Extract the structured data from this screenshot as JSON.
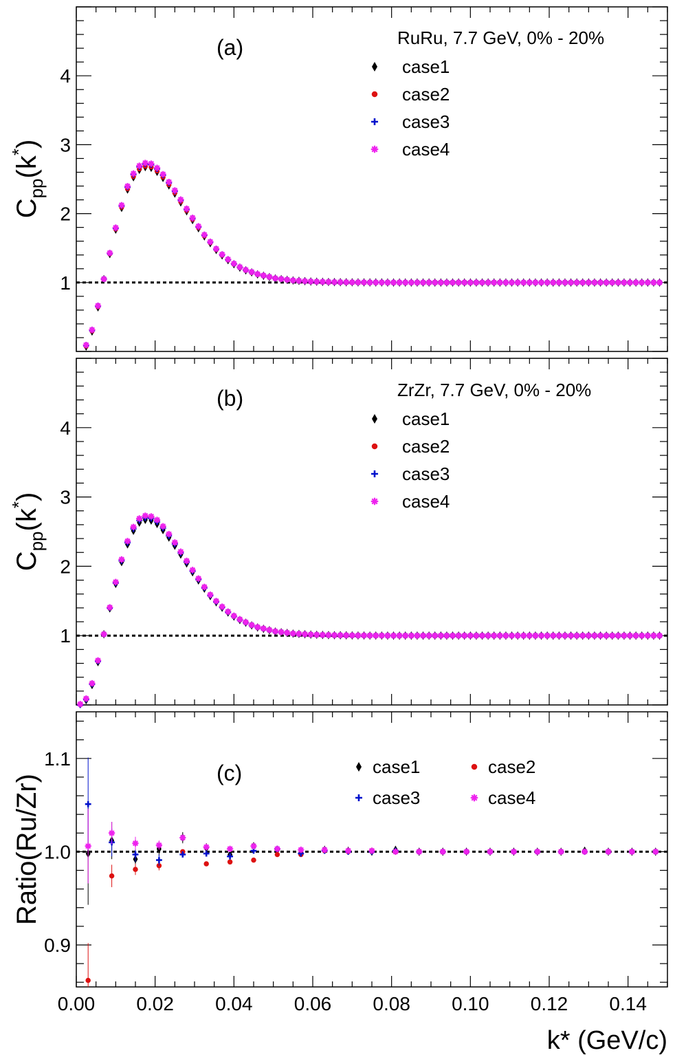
{
  "chart_data": [
    {
      "type": "scatter",
      "panel_label": "(a)",
      "legend_title": "RuRu, 7.7 GeV, 0% - 20%",
      "xlabel": "",
      "ylabel": "C_pp(k*)",
      "xlim": [
        0,
        0.15
      ],
      "ylim": [
        0,
        5
      ],
      "reference_line": 1,
      "y_ticks": [
        "1",
        "2",
        "3",
        "4"
      ],
      "x": [
        0.0025,
        0.004,
        0.0055,
        0.007,
        0.0085,
        0.01,
        0.0115,
        0.013,
        0.0145,
        0.016,
        0.0175,
        0.019,
        0.0205,
        0.022,
        0.0235,
        0.025,
        0.0265,
        0.028,
        0.0295,
        0.031,
        0.0325,
        0.034,
        0.0355,
        0.037,
        0.0385,
        0.04,
        0.0415,
        0.043,
        0.0445,
        0.046,
        0.0475,
        0.049,
        0.0505,
        0.052,
        0.0535,
        0.055,
        0.0565,
        0.058,
        0.0595,
        0.061,
        0.0625,
        0.064,
        0.0655,
        0.067,
        0.0685,
        0.07,
        0.0715,
        0.073,
        0.0745,
        0.076,
        0.0775,
        0.079,
        0.0805,
        0.082,
        0.0835,
        0.085,
        0.0865,
        0.088,
        0.0895,
        0.091,
        0.0925,
        0.094,
        0.0955,
        0.097,
        0.0985,
        0.1,
        0.1015,
        0.103,
        0.1045,
        0.106,
        0.1075,
        0.109,
        0.1105,
        0.112,
        0.1135,
        0.115,
        0.1165,
        0.118,
        0.1195,
        0.121,
        0.1225,
        0.124,
        0.1255,
        0.127,
        0.1285,
        0.13,
        0.1315,
        0.133,
        0.1345,
        0.136,
        0.1375,
        0.139,
        0.1405,
        0.142,
        0.1435,
        0.145,
        0.1465,
        0.148
      ],
      "curve": [
        0.08,
        0.3,
        0.65,
        1.05,
        1.42,
        1.78,
        2.1,
        2.37,
        2.55,
        2.66,
        2.7,
        2.69,
        2.63,
        2.54,
        2.43,
        2.31,
        2.18,
        2.05,
        1.92,
        1.8,
        1.68,
        1.58,
        1.48,
        1.4,
        1.33,
        1.27,
        1.22,
        1.18,
        1.15,
        1.12,
        1.1,
        1.08,
        1.06,
        1.05,
        1.04,
        1.03,
        1.025,
        1.02,
        1.015,
        1.012,
        1.01,
        1.008,
        1.006,
        1.005,
        1.004,
        1.003,
        1.002,
        1.002,
        1.001,
        1.001,
        1.001,
        1.0,
        1.0,
        1.0,
        1.0,
        1.0,
        1.0,
        1.0,
        1.0,
        1.0,
        1.0,
        1.0,
        1.0,
        1.0,
        1.0,
        1.0,
        1.0,
        1.0,
        1.0,
        1.0,
        1.0,
        1.0,
        1.0,
        1.0,
        1.0,
        1.0,
        1.0,
        1.0,
        1.0,
        1.0,
        1.0,
        1.0,
        1.0,
        1.0,
        1.0,
        1.0,
        1.0,
        1.0,
        1.0,
        1.0,
        1.0,
        1.0,
        1.0,
        1.0,
        1.0,
        1.0,
        1.0,
        1.0
      ],
      "series": [
        {
          "name": "case1",
          "color": "#000000",
          "marker": "diamond",
          "offset": -0.025
        },
        {
          "name": "case2",
          "color": "#dd1111",
          "marker": "circle",
          "offset": -0.01
        },
        {
          "name": "case3",
          "color": "#0011cc",
          "marker": "plus",
          "offset": 0.02
        },
        {
          "name": "case4",
          "color": "#ee22ee",
          "marker": "star",
          "offset": 0.035
        }
      ]
    },
    {
      "type": "scatter",
      "panel_label": "(b)",
      "legend_title": "ZrZr, 7.7 GeV, 0% - 20%",
      "xlabel": "",
      "ylabel": "C_pp(k*)",
      "xlim": [
        0,
        0.15
      ],
      "ylim": [
        0,
        5
      ],
      "reference_line": 1,
      "y_ticks": [
        "1",
        "2",
        "3",
        "4"
      ],
      "x": [
        0.001,
        0.0025,
        0.004,
        0.0055,
        0.007,
        0.0085,
        0.01,
        0.0115,
        0.013,
        0.0145,
        0.016,
        0.0175,
        0.019,
        0.0205,
        0.022,
        0.0235,
        0.025,
        0.0265,
        0.028,
        0.0295,
        0.031,
        0.0325,
        0.034,
        0.0355,
        0.037,
        0.0385,
        0.04,
        0.0415,
        0.043,
        0.0445,
        0.046,
        0.0475,
        0.049,
        0.0505,
        0.052,
        0.0535,
        0.055,
        0.0565,
        0.058,
        0.0595,
        0.061,
        0.0625,
        0.064,
        0.0655,
        0.067,
        0.0685,
        0.07,
        0.0715,
        0.073,
        0.0745,
        0.076,
        0.0775,
        0.079,
        0.0805,
        0.082,
        0.0835,
        0.085,
        0.0865,
        0.088,
        0.0895,
        0.091,
        0.0925,
        0.094,
        0.0955,
        0.097,
        0.0985,
        0.1,
        0.1015,
        0.103,
        0.1045,
        0.106,
        0.1075,
        0.109,
        0.1105,
        0.112,
        0.1135,
        0.115,
        0.1165,
        0.118,
        0.1195,
        0.121,
        0.1225,
        0.124,
        0.1255,
        0.127,
        0.1285,
        0.13,
        0.1315,
        0.133,
        0.1345,
        0.136,
        0.1375,
        0.139,
        0.1405,
        0.142,
        0.1435,
        0.145,
        0.1465,
        0.148
      ],
      "curve": [
        0.0,
        0.08,
        0.3,
        0.63,
        1.02,
        1.4,
        1.76,
        2.08,
        2.34,
        2.54,
        2.66,
        2.7,
        2.69,
        2.64,
        2.55,
        2.44,
        2.32,
        2.19,
        2.06,
        1.93,
        1.81,
        1.69,
        1.58,
        1.49,
        1.41,
        1.34,
        1.28,
        1.23,
        1.19,
        1.15,
        1.12,
        1.1,
        1.08,
        1.06,
        1.05,
        1.04,
        1.03,
        1.025,
        1.02,
        1.015,
        1.012,
        1.01,
        1.008,
        1.006,
        1.005,
        1.004,
        1.003,
        1.002,
        1.002,
        1.001,
        1.001,
        1.001,
        1.0,
        1.0,
        1.0,
        1.0,
        1.0,
        1.0,
        1.0,
        1.0,
        1.0,
        1.0,
        1.0,
        1.0,
        1.0,
        1.0,
        1.0,
        1.0,
        1.0,
        1.0,
        1.0,
        1.0,
        1.0,
        1.0,
        1.0,
        1.0,
        1.0,
        1.0,
        1.0,
        1.0,
        1.0,
        1.0,
        1.0,
        1.0,
        1.0,
        1.0,
        1.0,
        1.0,
        1.0,
        1.0,
        1.0,
        1.0,
        1.0,
        1.0,
        1.0,
        1.0,
        1.0,
        1.0,
        1.0
      ],
      "series": [
        {
          "name": "case1",
          "color": "#000000",
          "marker": "diamond",
          "offset": -0.03
        },
        {
          "name": "case2",
          "color": "#dd1111",
          "marker": "circle",
          "offset": 0.02
        },
        {
          "name": "case3",
          "color": "#0011cc",
          "marker": "plus",
          "offset": 0.0
        },
        {
          "name": "case4",
          "color": "#ee22ee",
          "marker": "star",
          "offset": 0.03
        }
      ]
    },
    {
      "type": "scatter",
      "panel_label": "(c)",
      "xlabel": "k* (GeV/c)",
      "ylabel": "Ratio(Ru/Zr)",
      "xlim": [
        0,
        0.15
      ],
      "ylim": [
        0.855,
        1.15
      ],
      "reference_line": 1.0,
      "y_ticks": [
        "0.9",
        "1.0",
        "1.1"
      ],
      "x_ticks": [
        "0.00",
        "0.02",
        "0.04",
        "0.06",
        "0.08",
        "0.10",
        "0.12",
        "0.14"
      ],
      "x": [
        0.003,
        0.009,
        0.015,
        0.021,
        0.027,
        0.033,
        0.039,
        0.045,
        0.051,
        0.057,
        0.063,
        0.069,
        0.075,
        0.081,
        0.087,
        0.093,
        0.099,
        0.105,
        0.111,
        0.117,
        0.123,
        0.129,
        0.135,
        0.141,
        0.147
      ],
      "series": [
        {
          "name": "case1",
          "color": "#000000",
          "marker": "diamond",
          "values": [
            0.998,
            1.012,
            0.992,
            1.003,
            1.015,
            1.004,
            0.997,
            1.006,
            1.002,
            0.999,
            1.002,
            1.001,
            1.0,
            1.002,
            1.0,
            1.0,
            1.0,
            1.0,
            1.0,
            1.0,
            1.0,
            1.001,
            1.0,
            1.0,
            1.0
          ],
          "errors": [
            0.055,
            0.02,
            0.012,
            0.008,
            0.006,
            0.005,
            0.004,
            0.003,
            0.003,
            0.003,
            0.002,
            0.002,
            0.002,
            0.002,
            0.002,
            0.002,
            0.002,
            0.002,
            0.002,
            0.002,
            0.002,
            0.002,
            0.002,
            0.002,
            0.002
          ]
        },
        {
          "name": "case2",
          "color": "#dd1111",
          "marker": "circle",
          "values": [
            0.862,
            0.974,
            0.981,
            0.985,
            1.0,
            0.987,
            0.989,
            0.991,
            0.997,
            0.997,
            1.001,
            1.0,
            1.001,
            1.0,
            1.0,
            1.0,
            1.0,
            1.0,
            1.0,
            1.0,
            1.0,
            1.0,
            1.0,
            1.0,
            1.0
          ],
          "errors": [
            0.04,
            0.012,
            0.006,
            0.005,
            0.004,
            0.003,
            0.003,
            0.003,
            0.002,
            0.002,
            0.002,
            0.002,
            0.002,
            0.002,
            0.002,
            0.002,
            0.002,
            0.002,
            0.002,
            0.002,
            0.002,
            0.002,
            0.002,
            0.002,
            0.002
          ]
        },
        {
          "name": "case3",
          "color": "#0011cc",
          "marker": "plus",
          "values": [
            1.051,
            1.01,
            0.997,
            0.991,
            0.997,
            0.998,
            0.995,
            1.001,
            1.003,
            0.998,
            1.001,
            1.0,
            1.0,
            1.001,
            1.0,
            1.0,
            1.0,
            1.0,
            1.0,
            1.0,
            1.0,
            1.0,
            1.0,
            1.0,
            1.0
          ],
          "errors": [
            0.05,
            0.015,
            0.008,
            0.006,
            0.004,
            0.004,
            0.003,
            0.003,
            0.003,
            0.002,
            0.002,
            0.002,
            0.002,
            0.002,
            0.002,
            0.002,
            0.002,
            0.002,
            0.002,
            0.002,
            0.002,
            0.002,
            0.002,
            0.002,
            0.002
          ]
        },
        {
          "name": "case4",
          "color": "#ee22ee",
          "marker": "star",
          "values": [
            1.006,
            1.02,
            1.009,
            1.007,
            1.015,
            1.005,
            1.003,
            1.006,
            1.003,
            1.002,
            1.002,
            1.001,
            1.001,
            1.0,
            1.0,
            1.0,
            1.0,
            1.0,
            1.0,
            1.0,
            1.0,
            1.0,
            1.0,
            1.0,
            1.0
          ],
          "errors": [
            0.04,
            0.012,
            0.007,
            0.005,
            0.004,
            0.004,
            0.003,
            0.003,
            0.002,
            0.002,
            0.002,
            0.002,
            0.002,
            0.002,
            0.002,
            0.002,
            0.002,
            0.002,
            0.002,
            0.002,
            0.002,
            0.002,
            0.002,
            0.002,
            0.002
          ]
        }
      ]
    }
  ]
}
